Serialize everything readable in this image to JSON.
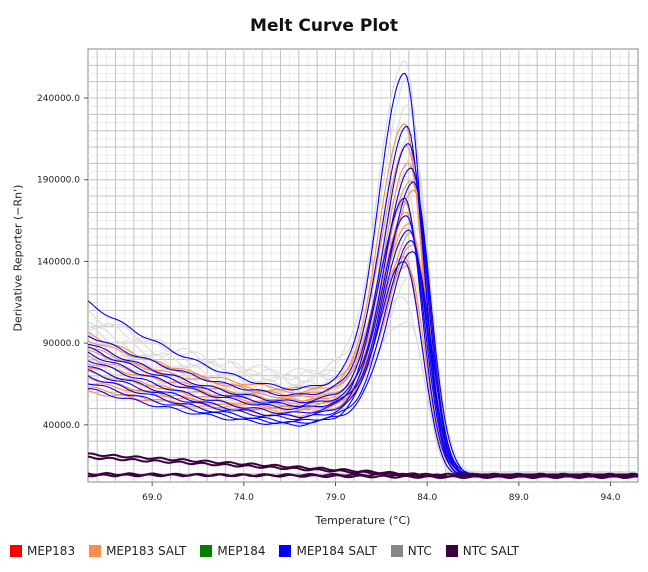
{
  "chart_data": {
    "type": "line",
    "title": "Melt Curve Plot",
    "xlabel": "Temperature (°C)",
    "ylabel": "Derivative Reporter (−Rn')",
    "xlim": [
      65.5,
      95.5
    ],
    "ylim": [
      5000,
      270000
    ],
    "x_ticks": [
      69.0,
      74.0,
      79.0,
      84.0,
      89.0,
      94.0
    ],
    "x_tick_labels": [
      "69.0",
      "74.0",
      "79.0",
      "84.0",
      "89.0",
      "94.0"
    ],
    "y_ticks": [
      40000,
      90000,
      140000,
      190000,
      240000
    ],
    "y_tick_labels": [
      "40000.0",
      "90000.0",
      "140000.0",
      "190000.0",
      "240000.0"
    ],
    "grid": true,
    "legend_position": "bottom",
    "series": [
      {
        "name": "MEP183",
        "color": "#ff0000",
        "curves": []
      },
      {
        "name": "MEP183 SALT",
        "color": "#ff8c4c",
        "curves": [
          {
            "start": 96000,
            "minimum": 58000,
            "peak": 225000
          },
          {
            "start": 92000,
            "minimum": 62000,
            "peak": 210000
          },
          {
            "start": 88000,
            "minimum": 55000,
            "peak": 200000
          },
          {
            "start": 85000,
            "minimum": 60000,
            "peak": 190000
          },
          {
            "start": 82000,
            "minimum": 52000,
            "peak": 183000
          },
          {
            "start": 78000,
            "minimum": 57000,
            "peak": 176000
          },
          {
            "start": 75000,
            "minimum": 50000,
            "peak": 170000
          },
          {
            "start": 72000,
            "minimum": 54000,
            "peak": 164000
          },
          {
            "start": 69000,
            "minimum": 48000,
            "peak": 157000
          },
          {
            "start": 66000,
            "minimum": 51000,
            "peak": 150000
          },
          {
            "start": 63000,
            "minimum": 46000,
            "peak": 143000
          },
          {
            "start": 60000,
            "minimum": 49000,
            "peak": 138000
          }
        ]
      },
      {
        "name": "MEP184",
        "color": "#008000",
        "curves": []
      },
      {
        "name": "MEP184 SALT",
        "color": "#0000ff",
        "curves": [
          {
            "start": 115000,
            "minimum": 62000,
            "peak": 256000
          },
          {
            "start": 95000,
            "minimum": 58000,
            "peak": 222000
          },
          {
            "start": 90000,
            "minimum": 54000,
            "peak": 212000
          },
          {
            "start": 87000,
            "minimum": 52000,
            "peak": 198000
          },
          {
            "start": 84000,
            "minimum": 50000,
            "peak": 188000
          },
          {
            "start": 80000,
            "minimum": 47000,
            "peak": 178000
          },
          {
            "start": 76000,
            "minimum": 45000,
            "peak": 168000
          },
          {
            "start": 73000,
            "minimum": 44000,
            "peak": 160000
          },
          {
            "start": 70000,
            "minimum": 42000,
            "peak": 152000
          },
          {
            "start": 66000,
            "minimum": 41000,
            "peak": 146000
          },
          {
            "start": 62000,
            "minimum": 40000,
            "peak": 140000
          }
        ]
      },
      {
        "name": "NTC",
        "color": "#888888",
        "curves": [
          {
            "start": 108000,
            "minimum": 70000,
            "peak": 265000
          },
          {
            "start": 105000,
            "minimum": 72000,
            "peak": 250000
          },
          {
            "start": 100000,
            "minimum": 68000,
            "peak": 235000
          },
          {
            "start": 98000,
            "minimum": 66000,
            "peak": 220000
          },
          {
            "start": 95000,
            "minimum": 64000,
            "peak": 205000
          },
          {
            "start": 92000,
            "minimum": 62000,
            "peak": 190000
          },
          {
            "start": 90000,
            "minimum": 60000,
            "peak": 175000
          },
          {
            "start": 88000,
            "minimum": 58000,
            "peak": 160000
          },
          {
            "start": 85000,
            "minimum": 56000,
            "peak": 145000
          },
          {
            "start": 82000,
            "minimum": 54000,
            "peak": 130000
          },
          {
            "start": 78000,
            "minimum": 52000,
            "peak": 118000
          },
          {
            "start": 75000,
            "minimum": 50000,
            "peak": 105000
          }
        ]
      },
      {
        "name": "NTC SALT",
        "color": "#3c0040",
        "curves": [
          {
            "start": 22000,
            "end": 9000
          },
          {
            "start": 20000,
            "end": 8500
          },
          {
            "start": 10000,
            "end": 8000
          },
          {
            "start": 9000,
            "end": 9500
          }
        ]
      }
    ]
  }
}
